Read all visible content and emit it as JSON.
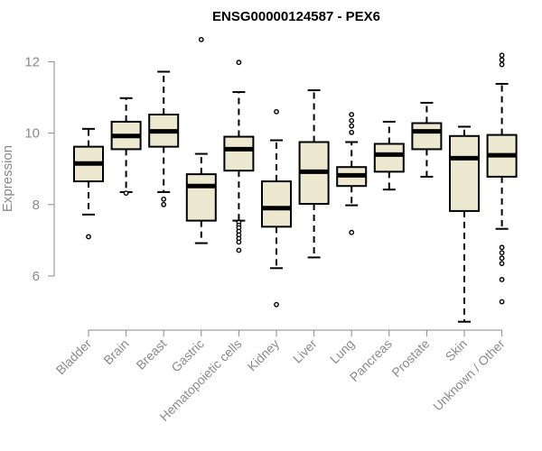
{
  "chart_data": {
    "type": "box",
    "title": "ENSG00000124587 - PEX6",
    "ylabel": "Expression",
    "xlabel": "",
    "ylim": [
      4.6,
      12.8
    ],
    "yticks": [
      6,
      8,
      10,
      12
    ],
    "grid": false,
    "colors": {
      "box_fill": "#ede8d0",
      "box_stroke": "#000000",
      "axis": "#8a8a8a"
    },
    "categories": [
      "Bladder",
      "Brain",
      "Breast",
      "Gastric",
      "Hematopoietic cells",
      "Kidney",
      "Liver",
      "Lung",
      "Pancreas",
      "Prostate",
      "Skin",
      "Unknown / Other"
    ],
    "boxes": [
      {
        "label": "Bladder",
        "q1": 8.65,
        "median": 9.15,
        "q3": 9.62,
        "whisker_low": 7.72,
        "whisker_high": 10.12,
        "outliers": [
          7.1
        ]
      },
      {
        "label": "Brain",
        "q1": 9.55,
        "median": 9.92,
        "q3": 10.32,
        "whisker_low": 8.35,
        "whisker_high": 10.98,
        "outliers": [
          8.32
        ]
      },
      {
        "label": "Breast",
        "q1": 9.62,
        "median": 10.05,
        "q3": 10.52,
        "whisker_low": 8.35,
        "whisker_high": 11.72,
        "outliers": [
          8.15,
          8.0
        ]
      },
      {
        "label": "Gastric",
        "q1": 7.55,
        "median": 8.52,
        "q3": 8.85,
        "whisker_low": 6.92,
        "whisker_high": 9.42,
        "outliers": [
          12.62
        ]
      },
      {
        "label": "Hematopoietic cells",
        "q1": 8.95,
        "median": 9.55,
        "q3": 9.9,
        "whisker_low": 7.55,
        "whisker_high": 11.15,
        "outliers": [
          11.98,
          7.5,
          7.42,
          7.35,
          7.25,
          7.15,
          7.05,
          6.95,
          6.72
        ]
      },
      {
        "label": "Kidney",
        "q1": 7.38,
        "median": 7.9,
        "q3": 8.65,
        "whisker_low": 6.22,
        "whisker_high": 9.8,
        "outliers": [
          10.6,
          5.2
        ]
      },
      {
        "label": "Liver",
        "q1": 8.02,
        "median": 8.92,
        "q3": 9.75,
        "whisker_low": 6.52,
        "whisker_high": 11.2,
        "outliers": []
      },
      {
        "label": "Lung",
        "q1": 8.52,
        "median": 8.82,
        "q3": 9.05,
        "whisker_low": 7.98,
        "whisker_high": 9.75,
        "outliers": [
          10.52,
          10.35,
          10.2,
          10.02,
          7.22
        ]
      },
      {
        "label": "Pancreas",
        "q1": 8.92,
        "median": 9.4,
        "q3": 9.7,
        "whisker_low": 8.42,
        "whisker_high": 10.32,
        "outliers": []
      },
      {
        "label": "Prostate",
        "q1": 9.55,
        "median": 10.05,
        "q3": 10.28,
        "whisker_low": 8.78,
        "whisker_high": 10.85,
        "outliers": []
      },
      {
        "label": "Skin",
        "q1": 7.82,
        "median": 9.3,
        "q3": 9.92,
        "whisker_low": 4.72,
        "whisker_high": 10.18,
        "outliers": []
      },
      {
        "label": "Unknown / Other",
        "q1": 8.78,
        "median": 9.38,
        "q3": 9.95,
        "whisker_low": 7.32,
        "whisker_high": 11.38,
        "outliers": [
          12.18,
          12.05,
          11.92,
          6.8,
          6.65,
          6.5,
          6.35,
          5.9,
          5.28
        ]
      }
    ]
  }
}
